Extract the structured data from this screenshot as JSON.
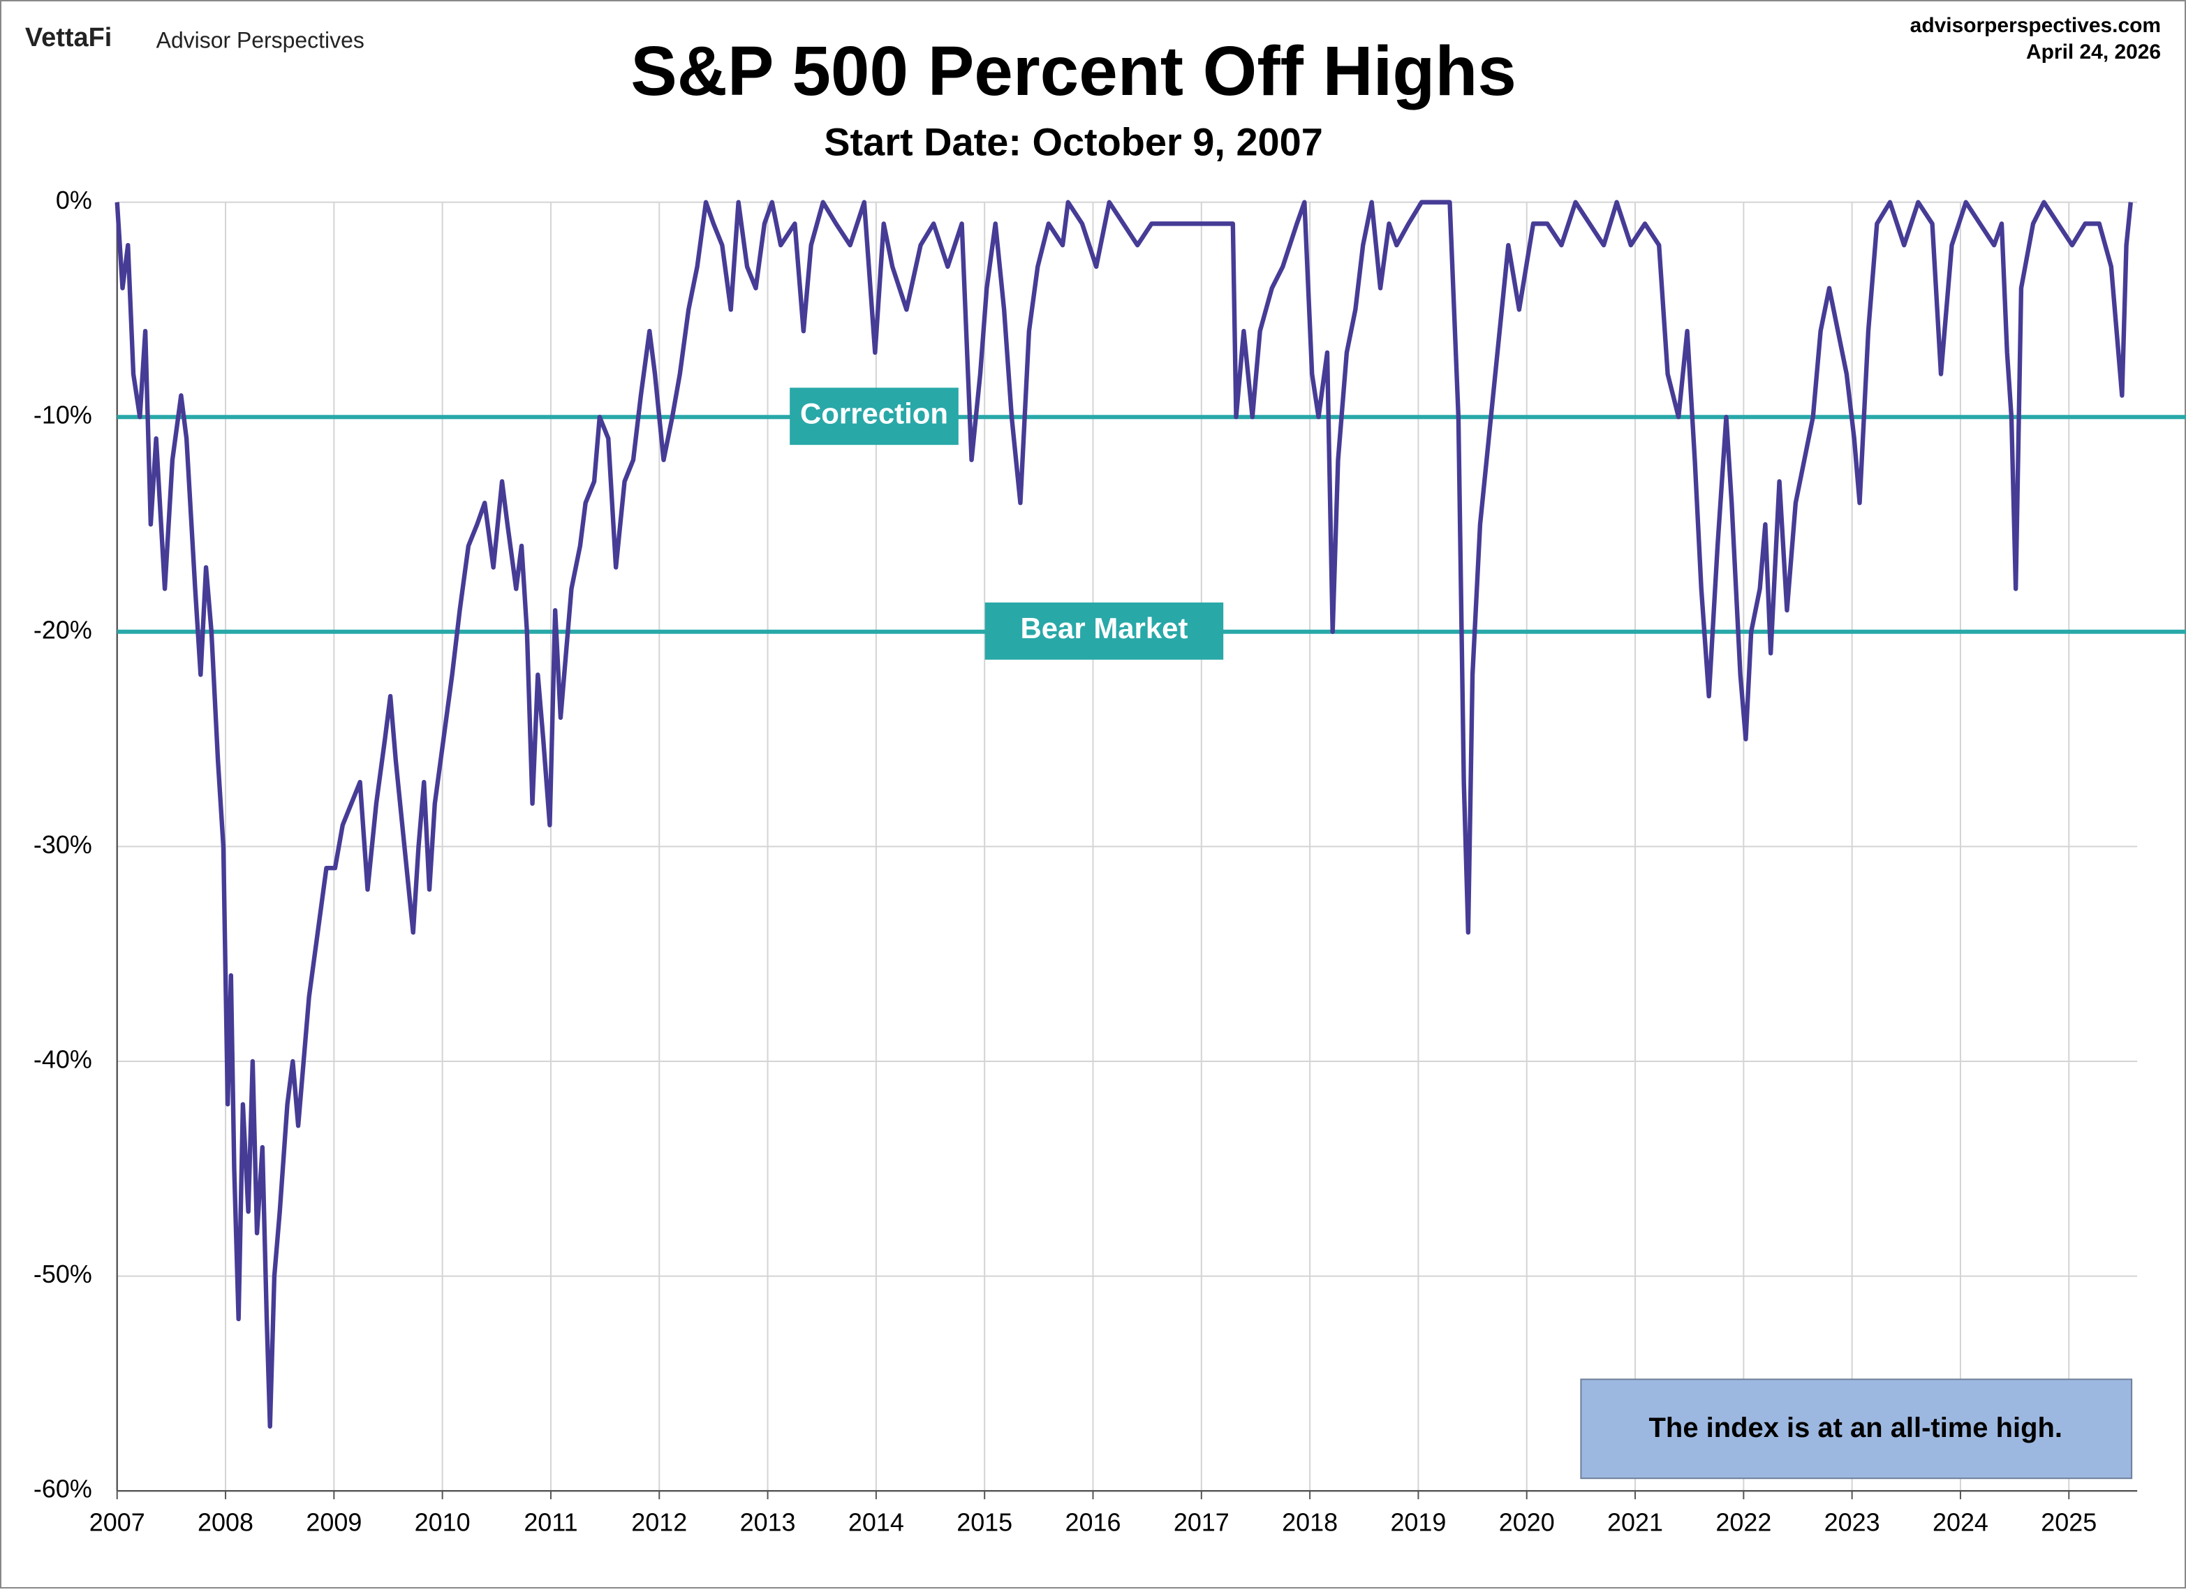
{
  "chart_data": {
    "type": "line",
    "brand": "VettaFi",
    "brand_sub": "Advisor Perspectives",
    "source": "advisorperspectives.com",
    "date": "April 24, 2026",
    "title": "S&P 500 Percent Off Highs",
    "subtitle": "Start Date: October 9, 2007",
    "note": "The index is at an all-time high.",
    "xlim": [
      2007,
      2025.63
    ],
    "xticks": [
      2007,
      2008,
      2009,
      2010,
      2011,
      2012,
      2013,
      2014,
      2015,
      2016,
      2017,
      2018,
      2019,
      2020,
      2021,
      2022,
      2023,
      2024,
      2025
    ],
    "ylim": [
      -60,
      0
    ],
    "yticks": [
      {
        "value": 0,
        "label": "0%"
      },
      {
        "value": -10,
        "label": "-10%"
      },
      {
        "value": -20,
        "label": "-20%"
      },
      {
        "value": -30,
        "label": "-30%"
      },
      {
        "value": -40,
        "label": "-40%"
      },
      {
        "value": -50,
        "label": "-50%"
      },
      {
        "value": -60,
        "label": "-60%"
      }
    ],
    "grid": true,
    "reference_lines": [
      {
        "value": -10,
        "label": "Correction",
        "color": "#29a8a8"
      },
      {
        "value": -20,
        "label": "Bear Market",
        "color": "#29a8a8"
      }
    ],
    "x": [
      2007.0,
      2007.05,
      2007.1,
      2007.15,
      2007.21,
      2007.26,
      2007.31,
      2007.36,
      2007.44,
      2007.51,
      2007.59,
      2007.64,
      2007.72,
      2007.77,
      2007.82,
      2007.87,
      2007.93,
      2007.98,
      2008.02,
      2008.05,
      2008.08,
      2008.12,
      2008.16,
      2008.21,
      2008.25,
      2008.29,
      2008.34,
      2008.38,
      2008.41,
      2008.45,
      2008.5,
      2008.57,
      2008.62,
      2008.67,
      2008.72,
      2008.77,
      2008.85,
      2008.93,
      2009.01,
      2009.08,
      2009.16,
      2009.24,
      2009.31,
      2009.39,
      2009.47,
      2009.52,
      2009.57,
      2009.65,
      2009.73,
      2009.78,
      2009.83,
      2009.88,
      2009.93,
      2010.01,
      2010.09,
      2010.16,
      2010.24,
      2010.32,
      2010.39,
      2010.47,
      2010.55,
      2010.6,
      2010.68,
      2010.73,
      2010.78,
      2010.83,
      2010.88,
      2010.93,
      2010.99,
      2011.04,
      2011.09,
      2011.14,
      2011.19,
      2011.27,
      2011.32,
      2011.4,
      2011.45,
      2011.53,
      2011.6,
      2011.68,
      2011.76,
      2011.83,
      2011.91,
      2011.96,
      2012.04,
      2012.12,
      2012.19,
      2012.27,
      2012.35,
      2012.43,
      2012.5,
      2012.58,
      2012.66,
      2012.73,
      2012.81,
      2012.89,
      2012.97,
      2013.04,
      2013.12,
      2013.25,
      2013.33,
      2013.4,
      2013.51,
      2013.63,
      2013.76,
      2013.89,
      2013.99,
      2014.07,
      2014.15,
      2014.28,
      2014.41,
      2014.53,
      2014.66,
      2014.79,
      2014.88,
      2014.96,
      2015.02,
      2015.1,
      2015.18,
      2015.25,
      2015.33,
      2015.41,
      2015.49,
      2015.59,
      2015.72,
      2015.77,
      2015.9,
      2016.03,
      2016.15,
      2016.28,
      2016.41,
      2016.54,
      2016.72,
      2016.98,
      2017.18,
      2017.29,
      2017.32,
      2017.39,
      2017.47,
      2017.54,
      2017.65,
      2017.75,
      2017.88,
      2017.95,
      2018.02,
      2018.08,
      2018.16,
      2018.21,
      2018.26,
      2018.34,
      2018.42,
      2018.49,
      2018.57,
      2018.65,
      2018.73,
      2018.8,
      2018.91,
      2019.03,
      2019.16,
      2019.29,
      2019.37,
      2019.42,
      2019.46,
      2019.5,
      2019.57,
      2019.65,
      2019.73,
      2019.83,
      2019.93,
      2020.06,
      2020.19,
      2020.32,
      2020.45,
      2020.58,
      2020.71,
      2020.83,
      2020.96,
      2021.09,
      2021.22,
      2021.3,
      2021.4,
      2021.48,
      2021.55,
      2021.61,
      2021.68,
      2021.76,
      2021.84,
      2021.89,
      2021.97,
      2022.02,
      2022.07,
      2022.15,
      2022.2,
      2022.25,
      2022.33,
      2022.4,
      2022.48,
      2022.56,
      2022.64,
      2022.71,
      2022.79,
      2022.87,
      2022.95,
      2023.02,
      2023.07,
      2023.15,
      2023.23,
      2023.35,
      2023.48,
      2023.61,
      2023.74,
      2023.82,
      2023.92,
      2024.05,
      2024.18,
      2024.31,
      2024.38,
      2024.43,
      2024.47,
      2024.51,
      2024.56,
      2024.67,
      2024.77,
      2024.9,
      2025.03,
      2025.15,
      2025.28,
      2025.39,
      2025.44,
      2025.49,
      2025.53,
      2025.57
    ],
    "series": [
      {
        "name": "S&P 500",
        "color": "#463c96",
        "values": [
          0,
          -4,
          -2,
          -8,
          -10,
          -6,
          -15,
          -11,
          -18,
          -12,
          -9,
          -11,
          -18,
          -22,
          -17,
          -20,
          -26,
          -30,
          -42,
          -36,
          -45,
          -52,
          -42,
          -47,
          -40,
          -48,
          -44,
          -52,
          -57,
          -50,
          -47,
          -42,
          -40,
          -43,
          -40,
          -37,
          -34,
          -31,
          -31,
          -29,
          -28,
          -27,
          -32,
          -28,
          -25,
          -23,
          -26,
          -30,
          -34,
          -30,
          -27,
          -32,
          -28,
          -25,
          -22,
          -19,
          -16,
          -15,
          -14,
          -17,
          -13,
          -15,
          -18,
          -16,
          -20,
          -28,
          -22,
          -25,
          -29,
          -19,
          -24,
          -21,
          -18,
          -16,
          -14,
          -13,
          -10,
          -11,
          -17,
          -13,
          -12,
          -9,
          -6,
          -8,
          -12,
          -10,
          -8,
          -5,
          -3,
          0,
          -1,
          -2,
          -5,
          0,
          -3,
          -4,
          -1,
          0,
          -2,
          -1,
          -6,
          -2,
          0,
          -1,
          -2,
          0,
          -7,
          -1,
          -3,
          -5,
          -2,
          -1,
          -3,
          -1,
          -12,
          -8,
          -4,
          -1,
          -5,
          -10,
          -14,
          -6,
          -3,
          -1,
          -2,
          0,
          -1,
          -3,
          0,
          -1,
          -2,
          -1,
          -1,
          -1,
          -1,
          -1,
          -10,
          -6,
          -10,
          -6,
          -4,
          -3,
          -1,
          0,
          -8,
          -10,
          -7,
          -20,
          -12,
          -7,
          -5,
          -2,
          0,
          -4,
          -1,
          -2,
          -1,
          0,
          0,
          0,
          -10,
          -27,
          -34,
          -22,
          -15,
          -11,
          -7,
          -2,
          -5,
          -1,
          -1,
          -2,
          0,
          -1,
          -2,
          0,
          -2,
          -1,
          -2,
          -8,
          -10,
          -6,
          -12,
          -18,
          -23,
          -16,
          -10,
          -14,
          -22,
          -25,
          -20,
          -18,
          -15,
          -21,
          -13,
          -19,
          -14,
          -12,
          -10,
          -6,
          -4,
          -6,
          -8,
          -11,
          -14,
          -6,
          -1,
          0,
          -2,
          0,
          -1,
          -8,
          -2,
          0,
          -1,
          -2,
          -1,
          -7,
          -10,
          -18,
          -4,
          -1,
          0,
          -1,
          -2,
          -1,
          -1,
          -3,
          -6,
          -9,
          -2,
          0
        ]
      }
    ]
  }
}
